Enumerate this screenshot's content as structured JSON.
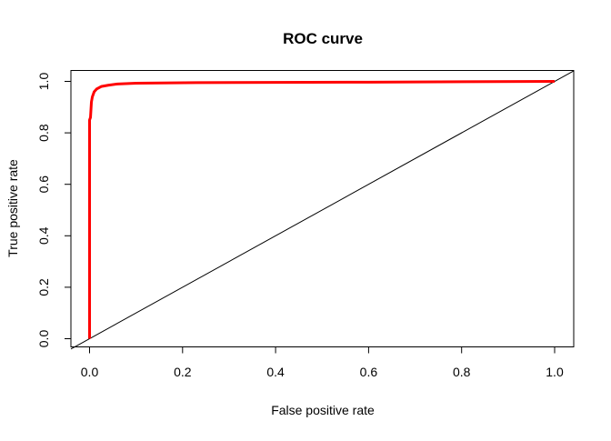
{
  "chart_data": {
    "type": "line",
    "title": "ROC curve",
    "xlabel": "False positive rate",
    "ylabel": "True positive rate",
    "xlim": [
      0,
      1
    ],
    "ylim": [
      0,
      1
    ],
    "xticks": [
      "0.0",
      "0.2",
      "0.4",
      "0.6",
      "0.8",
      "1.0"
    ],
    "yticks": [
      "0.0",
      "0.2",
      "0.4",
      "0.6",
      "0.8",
      "1.0"
    ],
    "grid": false,
    "series": [
      {
        "name": "ROC",
        "color": "#ff0000",
        "x": [
          0,
          0,
          0.002,
          0.004,
          0.006,
          0.01,
          0.015,
          0.025,
          0.04,
          0.06,
          0.1,
          0.23,
          0.6,
          1
        ],
        "y": [
          0,
          0.85,
          0.86,
          0.92,
          0.94,
          0.96,
          0.97,
          0.98,
          0.985,
          0.99,
          0.993,
          0.995,
          0.997,
          1
        ]
      },
      {
        "name": "diagonal",
        "color": "#000000",
        "x": [
          0,
          1
        ],
        "y": [
          0,
          1
        ]
      }
    ]
  }
}
